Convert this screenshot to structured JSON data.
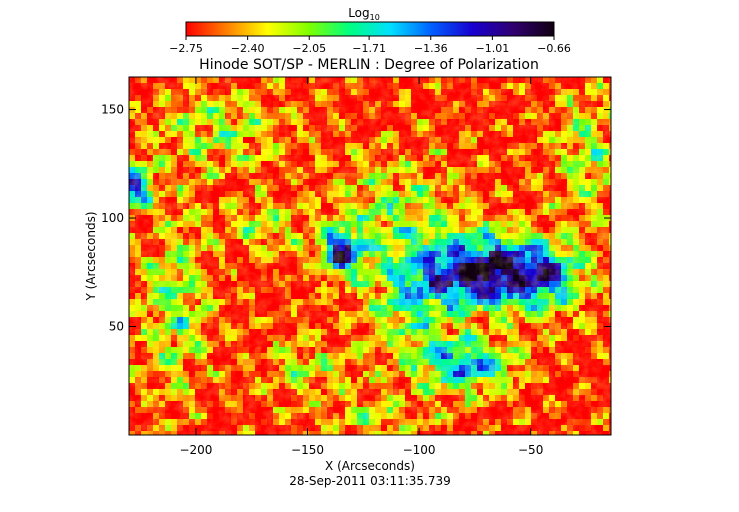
{
  "chart_data": {
    "type": "heatmap",
    "title": "Hinode SOT/SP - MERLIN : Degree of Polarization",
    "xlabel": "X (Arcseconds)",
    "ylabel": "Y (Arcseconds)",
    "timestamp": "28-Sep-2011 03:11:35.739",
    "xlim": [
      -230,
      -14
    ],
    "ylim": [
      0,
      165
    ],
    "xticks": [
      -200,
      -150,
      -100,
      -50
    ],
    "yticks": [
      50,
      100,
      150
    ],
    "xtick_labels": [
      "−200",
      "−150",
      "−100",
      "−50"
    ],
    "ytick_labels": [
      "50",
      "100",
      "150"
    ],
    "colorbar": {
      "label_base": "Log",
      "label_sub": "10",
      "scale": "log10",
      "range": [
        -2.75,
        -0.66
      ],
      "ticks": [
        -2.75,
        -2.4,
        -2.05,
        -1.71,
        -1.36,
        -1.01,
        -0.66
      ],
      "tick_labels": [
        "−2.75",
        "−2.40",
        "−2.05",
        "−1.71",
        "−1.36",
        "−1.01",
        "−0.66"
      ],
      "colormap": [
        "#ff0000",
        "#ff8000",
        "#ffff00",
        "#80ff00",
        "#00ff80",
        "#00e0ff",
        "#0060ff",
        "#1800d0",
        "#300070",
        "#100010"
      ]
    },
    "features": [
      {
        "name": "main polarized region",
        "x": -65,
        "y": 75,
        "value": -0.75
      },
      {
        "name": "eastern polarized patch",
        "x": -135,
        "y": 85,
        "value": -0.95
      },
      {
        "name": "left-edge polarized patch",
        "x": -228,
        "y": 115,
        "value": -1.2
      },
      {
        "name": "southern plage",
        "x": -75,
        "y": 35,
        "value": -1.3
      }
    ],
    "grid": false,
    "legend": "colorbar-top"
  }
}
